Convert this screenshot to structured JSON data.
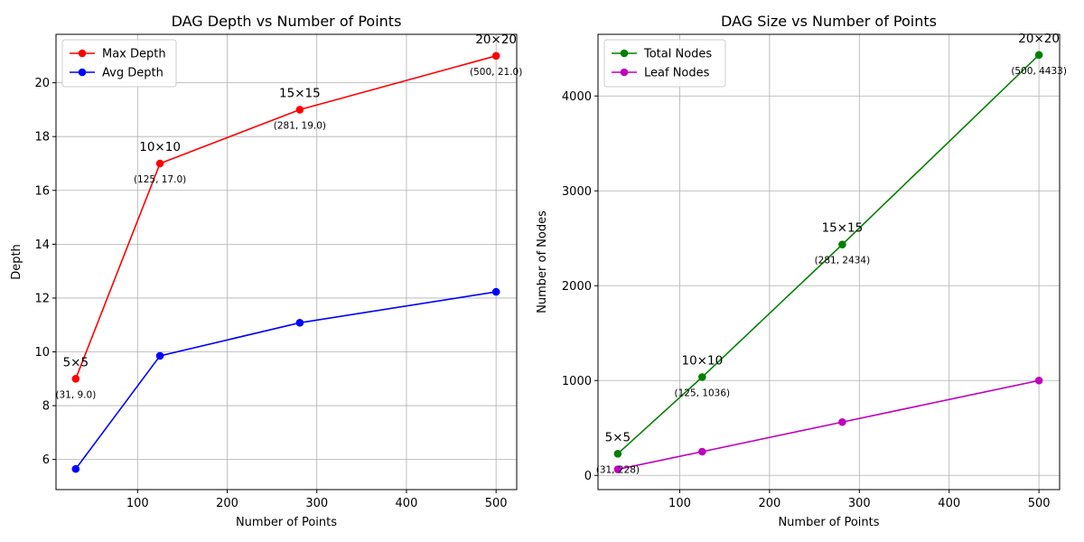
{
  "chart_data": [
    {
      "type": "line",
      "title": "DAG Depth vs Number of Points",
      "xlabel": "Number of Points",
      "ylabel": "Depth",
      "xlim": [
        9,
        523
      ],
      "ylim": [
        4.88,
        21.8
      ],
      "xticks": [
        100,
        200,
        300,
        400,
        500
      ],
      "yticks": [
        6,
        8,
        10,
        12,
        14,
        16,
        18,
        20
      ],
      "grid": true,
      "legend_position": "top-left",
      "x": [
        31,
        125,
        281,
        500
      ],
      "series": [
        {
          "name": "Max Depth",
          "color": "#ff0000",
          "values": [
            9.0,
            17.0,
            19.0,
            21.0
          ]
        },
        {
          "name": "Avg Depth",
          "color": "#0000ff",
          "values": [
            5.65,
            9.85,
            11.08,
            12.23
          ]
        }
      ],
      "annotations": {
        "series_index": 0,
        "grid_labels": [
          "5×5",
          "10×10",
          "15×15",
          "20×20"
        ],
        "point_labels": [
          "(31, 9.0)",
          "(125, 17.0)",
          "(281, 19.0)",
          "(500, 21.0)"
        ]
      }
    },
    {
      "type": "line",
      "title": "DAG Size vs Number of Points",
      "xlabel": "Number of Points",
      "ylabel": "Number of Nodes",
      "xlim": [
        9,
        523
      ],
      "ylim": [
        -150,
        4650
      ],
      "xticks": [
        100,
        200,
        300,
        400,
        500
      ],
      "yticks": [
        0,
        1000,
        2000,
        3000,
        4000
      ],
      "grid": true,
      "legend_position": "top-left",
      "x": [
        31,
        125,
        281,
        500
      ],
      "series": [
        {
          "name": "Total Nodes",
          "color": "#008000",
          "values": [
            228,
            1036,
            2434,
            4433
          ]
        },
        {
          "name": "Leaf Nodes",
          "color": "#bf00bf",
          "values": [
            64,
            250,
            562,
            1000
          ]
        }
      ],
      "annotations": {
        "series_index": 0,
        "grid_labels": [
          "5×5",
          "10×10",
          "15×15",
          "20×20"
        ],
        "point_labels": [
          "(31, 228)",
          "(125, 1036)",
          "(281, 2434)",
          "(500, 4433)"
        ]
      }
    }
  ]
}
